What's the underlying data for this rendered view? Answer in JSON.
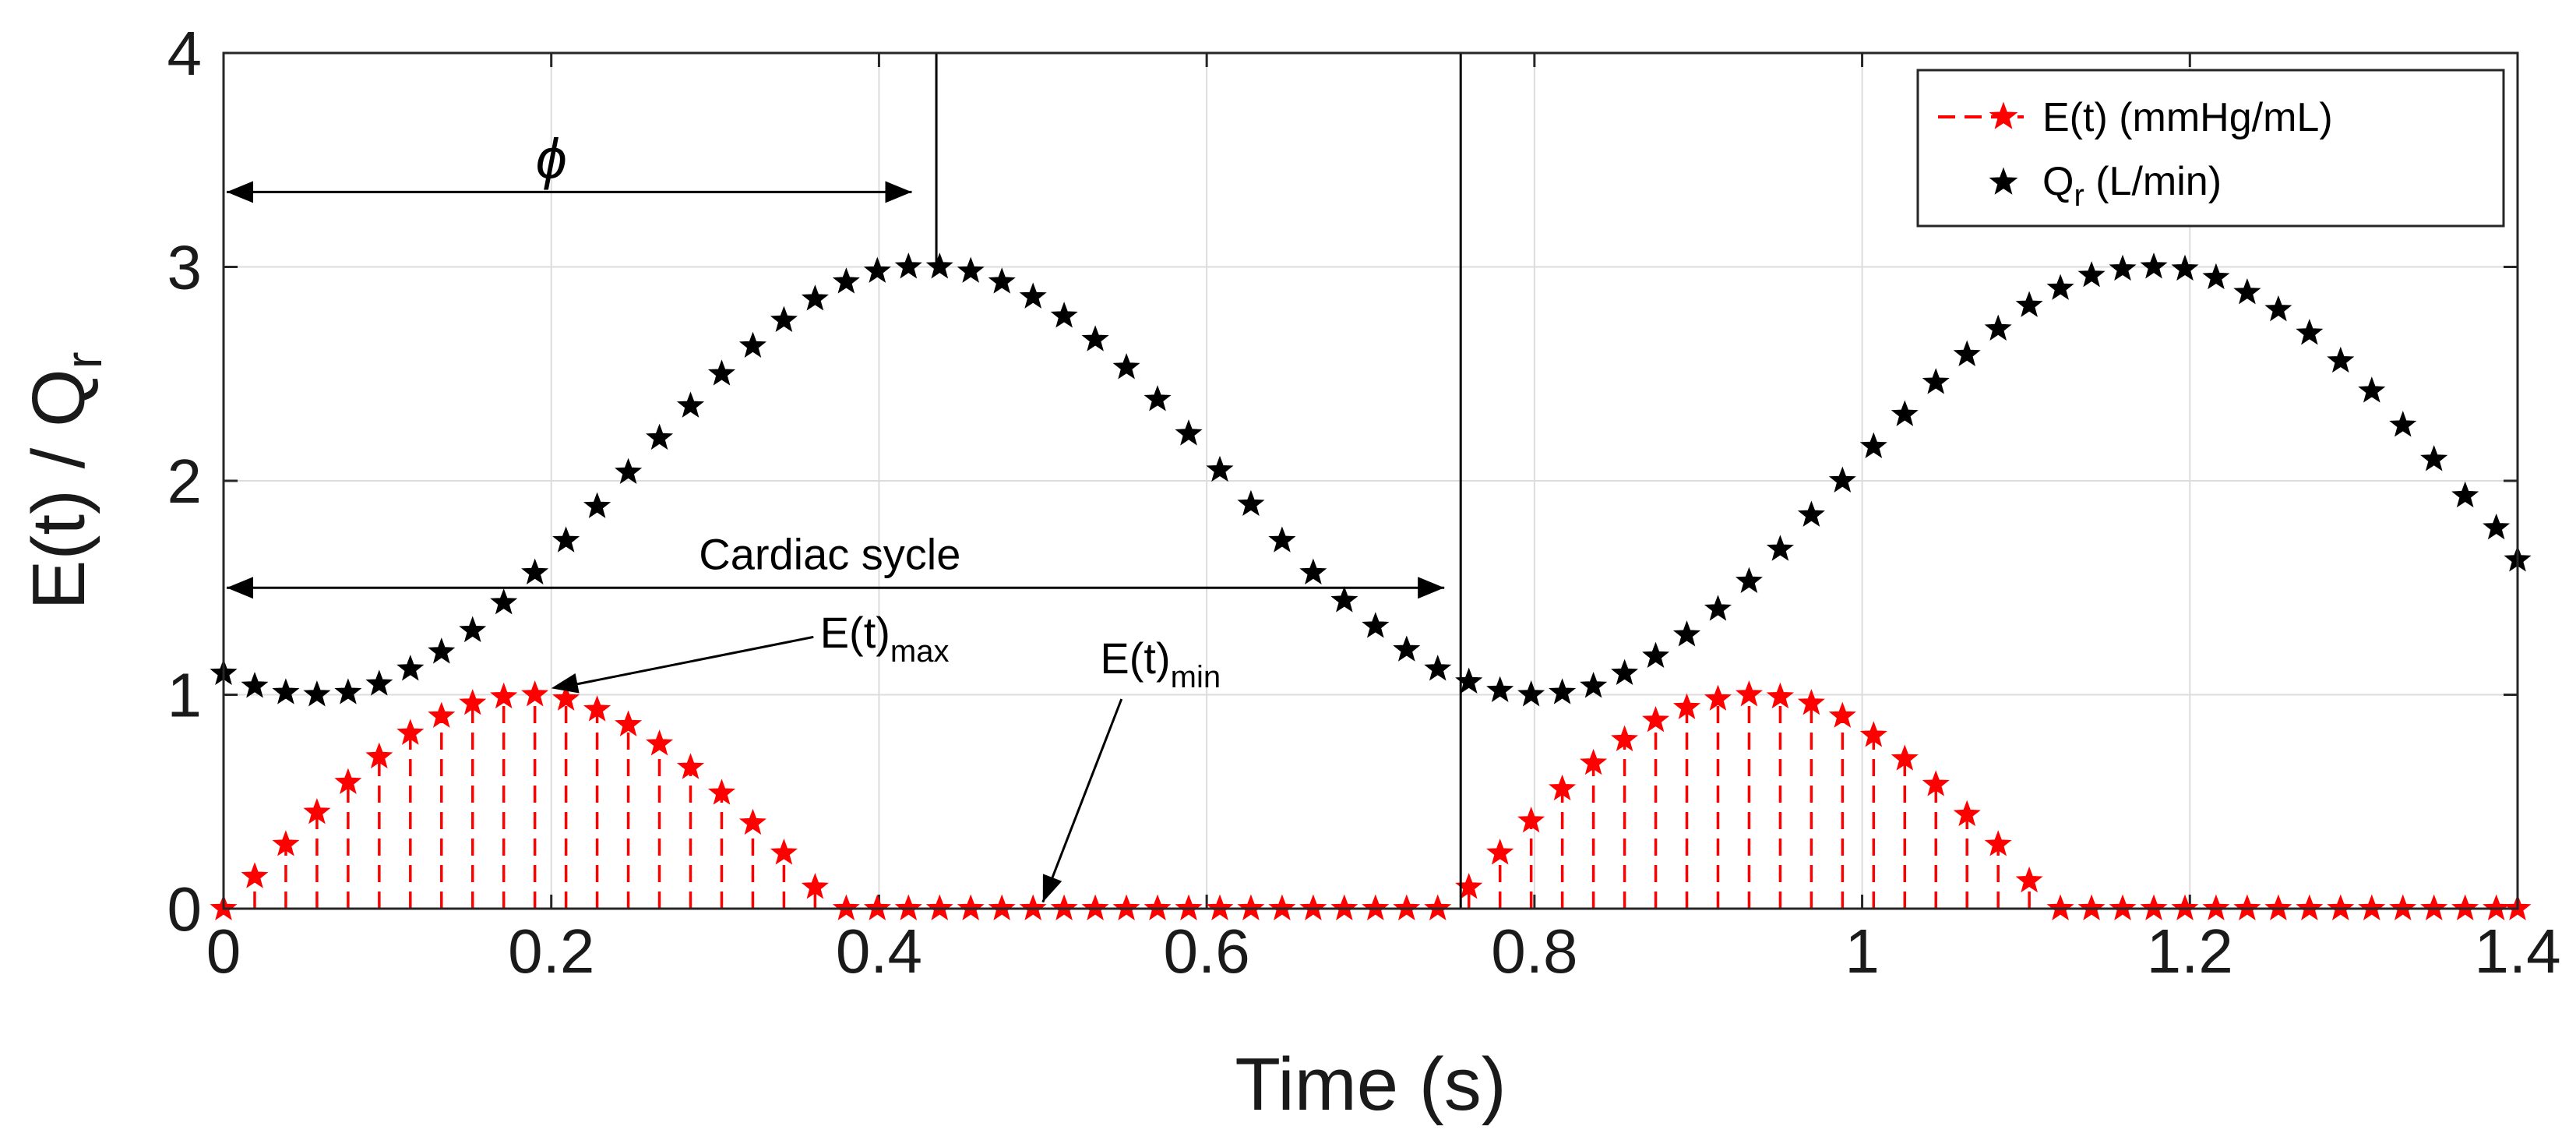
{
  "colors": {
    "e_series": "#ff0000",
    "q_series": "#000000",
    "grid": "#dcdcdc",
    "axis": "#262626"
  },
  "chart_data": {
    "type": "scatter",
    "title": "",
    "xlabel": "Time (s)",
    "ylabel": "E(t) / Q",
    "ylabel_sub": "r",
    "xlim": [
      0,
      1.4
    ],
    "ylim": [
      0,
      4
    ],
    "xticks": [
      0,
      0.2,
      0.4,
      0.6,
      0.8,
      1,
      1.2,
      1.4
    ],
    "xtick_labels": [
      "0",
      "0.2",
      "0.4",
      "0.6",
      "0.8",
      "1",
      "1.2",
      "1.4"
    ],
    "yticks": [
      0,
      1,
      2,
      3,
      4
    ],
    "ytick_labels": [
      "0",
      "1",
      "2",
      "3",
      "4"
    ],
    "grid": true,
    "legend_position": "top-right",
    "series": [
      {
        "name": "E(t) (mmHg/mL)",
        "marker": "star",
        "style": "stem-dashed",
        "color": "#ff0000",
        "x": [
          0,
          0.019,
          0.038,
          0.057,
          0.076,
          0.095,
          0.114,
          0.133,
          0.152,
          0.171,
          0.19,
          0.209,
          0.228,
          0.247,
          0.266,
          0.285,
          0.304,
          0.323,
          0.342,
          0.361,
          0.38,
          0.399,
          0.418,
          0.437,
          0.456,
          0.475,
          0.494,
          0.513,
          0.532,
          0.551,
          0.57,
          0.589,
          0.608,
          0.627,
          0.646,
          0.665,
          0.684,
          0.703,
          0.722,
          0.741,
          0.76,
          0.779,
          0.798,
          0.817,
          0.836,
          0.855,
          0.874,
          0.893,
          0.912,
          0.931,
          0.95,
          0.969,
          0.988,
          1.007,
          1.026,
          1.045,
          1.064,
          1.083,
          1.102,
          1.121,
          1.14,
          1.159,
          1.178,
          1.197,
          1.216,
          1.235,
          1.254,
          1.273,
          1.292,
          1.311,
          1.33,
          1.349,
          1.368,
          1.387,
          1.4
        ],
        "values": [
          0,
          0.15,
          0.3,
          0.45,
          0.59,
          0.71,
          0.82,
          0.9,
          0.96,
          0.99,
          1.0,
          0.98,
          0.93,
          0.86,
          0.77,
          0.66,
          0.54,
          0.4,
          0.26,
          0.1,
          0,
          0,
          0,
          0,
          0,
          0,
          0,
          0,
          0,
          0,
          0,
          0,
          0,
          0,
          0,
          0,
          0,
          0,
          0,
          0,
          0.1,
          0.26,
          0.41,
          0.56,
          0.68,
          0.79,
          0.88,
          0.94,
          0.98,
          1.0,
          0.99,
          0.96,
          0.9,
          0.81,
          0.7,
          0.58,
          0.44,
          0.3,
          0.13,
          0,
          0,
          0,
          0,
          0,
          0,
          0,
          0,
          0,
          0,
          0,
          0,
          0,
          0,
          0,
          0
        ]
      },
      {
        "name": "Q_r (L/min)",
        "marker": "star",
        "style": "markers",
        "color": "#000000",
        "x": [
          0,
          0.019,
          0.038,
          0.057,
          0.076,
          0.095,
          0.114,
          0.133,
          0.152,
          0.171,
          0.19,
          0.209,
          0.228,
          0.247,
          0.266,
          0.285,
          0.304,
          0.323,
          0.342,
          0.361,
          0.38,
          0.399,
          0.418,
          0.437,
          0.456,
          0.475,
          0.494,
          0.513,
          0.532,
          0.551,
          0.57,
          0.589,
          0.608,
          0.627,
          0.646,
          0.665,
          0.684,
          0.703,
          0.722,
          0.741,
          0.76,
          0.779,
          0.798,
          0.817,
          0.836,
          0.855,
          0.874,
          0.893,
          0.912,
          0.931,
          0.95,
          0.969,
          0.988,
          1.007,
          1.026,
          1.045,
          1.064,
          1.083,
          1.102,
          1.121,
          1.14,
          1.159,
          1.178,
          1.197,
          1.216,
          1.235,
          1.254,
          1.273,
          1.292,
          1.311,
          1.33,
          1.349,
          1.368,
          1.387,
          1.4
        ],
        "values": [
          1.1,
          1.04,
          1.01,
          1.0,
          1.01,
          1.05,
          1.12,
          1.2,
          1.3,
          1.43,
          1.57,
          1.72,
          1.88,
          2.04,
          2.2,
          2.35,
          2.5,
          2.63,
          2.75,
          2.85,
          2.93,
          2.98,
          3.0,
          3.0,
          2.98,
          2.93,
          2.86,
          2.77,
          2.66,
          2.53,
          2.38,
          2.22,
          2.05,
          1.89,
          1.72,
          1.57,
          1.44,
          1.32,
          1.21,
          1.12,
          1.06,
          1.02,
          1.0,
          1.01,
          1.04,
          1.1,
          1.18,
          1.28,
          1.4,
          1.53,
          1.68,
          1.84,
          2.0,
          2.16,
          2.31,
          2.46,
          2.59,
          2.71,
          2.82,
          2.9,
          2.96,
          2.99,
          3.0,
          2.99,
          2.95,
          2.88,
          2.8,
          2.69,
          2.56,
          2.42,
          2.26,
          2.1,
          1.93,
          1.78,
          1.63
        ]
      }
    ],
    "annotations": {
      "phi": {
        "label": "ϕ",
        "from_x": 0,
        "to_x": 0.42,
        "y": 3.35,
        "marker_x": 0.435
      },
      "cardiac_cycle": {
        "label": "Cardiac sycle",
        "from_x": 0,
        "to_x": 0.745,
        "y": 1.5,
        "marker_x": 0.755
      },
      "e_max": {
        "label": "E(t)",
        "sub": "max",
        "target_x": 0.2,
        "target_y": 1.03
      },
      "e_min": {
        "label": "E(t)",
        "sub": "min",
        "target_x": 0.5,
        "target_y": 0.03
      }
    }
  }
}
